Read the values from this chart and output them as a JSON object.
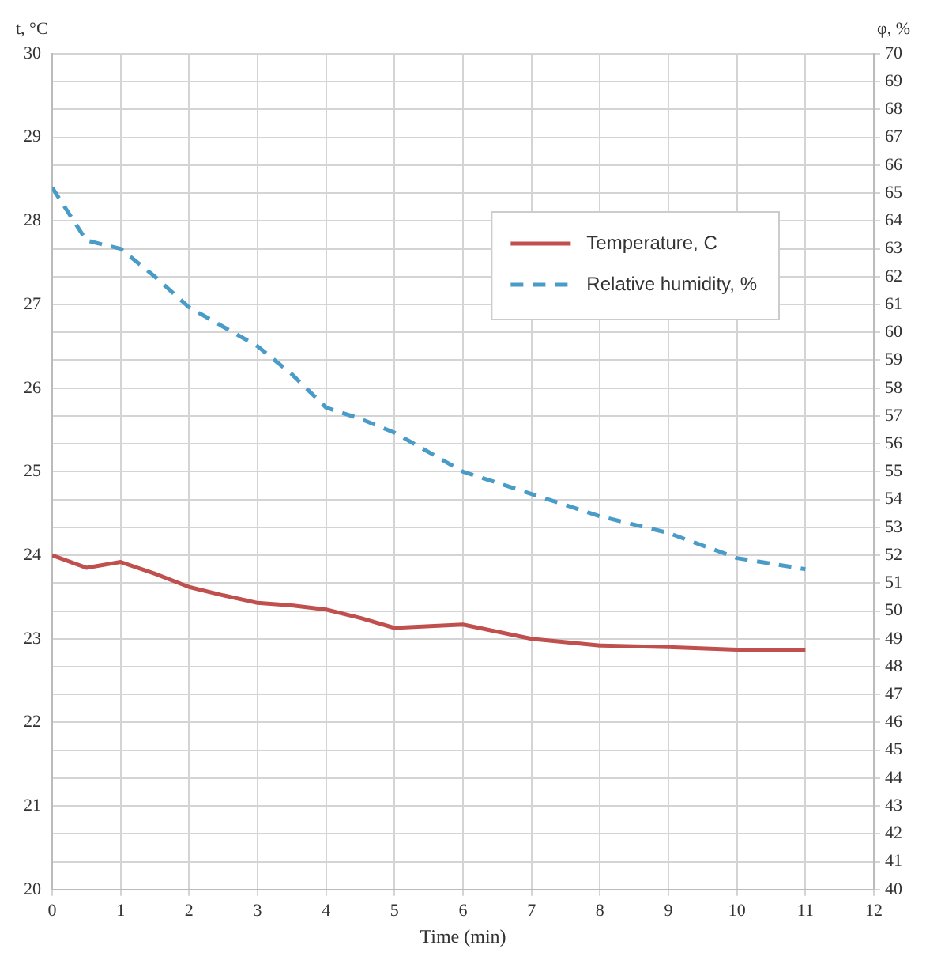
{
  "chart_data": {
    "type": "line",
    "xlabel": "Time (min)",
    "ylabel": "t, °C",
    "y2label": "φ, %",
    "x": [
      0,
      0.5,
      1,
      1.5,
      2,
      2.5,
      3,
      3.5,
      4,
      4.5,
      5,
      6,
      7,
      8,
      9,
      10,
      11
    ],
    "series": [
      {
        "name": "Temperature, C",
        "color": "#c0504d",
        "line_style": "solid",
        "values": [
          24.0,
          23.85,
          23.92,
          23.78,
          23.62,
          23.52,
          23.43,
          23.4,
          23.35,
          23.25,
          23.13,
          23.17,
          23.0,
          22.92,
          22.9,
          22.87,
          22.87
        ]
      },
      {
        "name": "Relative humidity, %",
        "color": "#4a9cc8",
        "line_style": "dashed",
        "axis": "y2",
        "values": [
          65.2,
          63.3,
          63.0,
          62.0,
          60.9,
          60.2,
          59.5,
          58.5,
          57.3,
          56.9,
          56.4,
          55.0,
          54.2,
          53.4,
          52.8,
          51.9,
          51.5
        ]
      }
    ],
    "xlim": [
      0,
      12
    ],
    "xticks": [
      0,
      1,
      2,
      3,
      4,
      5,
      6,
      7,
      8,
      9,
      10,
      11,
      12
    ],
    "ylim": [
      20,
      30
    ],
    "yticks": [
      20,
      21,
      22,
      23,
      24,
      25,
      26,
      27,
      28,
      29,
      30
    ],
    "y2lim": [
      40,
      70
    ],
    "y2ticks": [
      40,
      41,
      42,
      43,
      44,
      45,
      46,
      47,
      48,
      49,
      50,
      51,
      52,
      53,
      54,
      55,
      56,
      57,
      58,
      59,
      60,
      61,
      62,
      63,
      64,
      65,
      66,
      67,
      68,
      69,
      70
    ],
    "grid": true,
    "legend": "top right",
    "marker": "none"
  }
}
